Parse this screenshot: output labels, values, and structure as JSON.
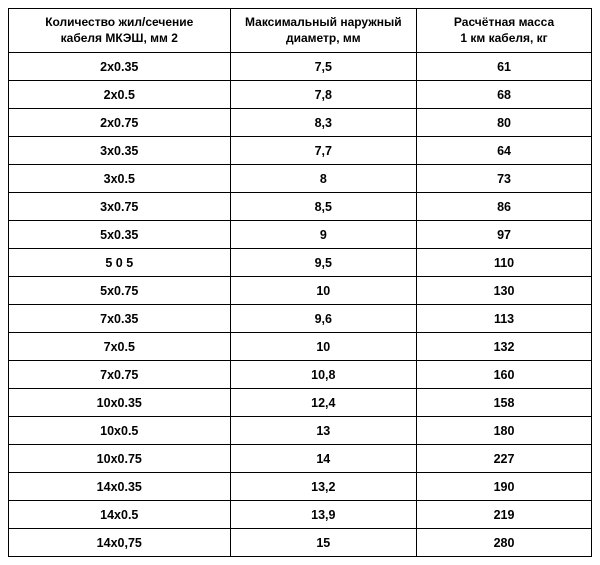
{
  "table": {
    "columns": [
      "Количество жил/сечение\nкабеля МКЭШ, мм 2",
      "Максимальный наружный\nдиаметр, мм",
      "Расчётная масса\n1 км кабеля, кг"
    ],
    "rows": [
      [
        "2х0.35",
        "7,5",
        "61"
      ],
      [
        "2х0.5",
        "7,8",
        "68"
      ],
      [
        "2х0.75",
        "8,3",
        "80"
      ],
      [
        "3х0.35",
        "7,7",
        "64"
      ],
      [
        "3х0.5",
        "8",
        "73"
      ],
      [
        "3х0.75",
        "8,5",
        "86"
      ],
      [
        "5х0.35",
        "9",
        "97"
      ],
      [
        "5 0 5",
        "9,5",
        "110"
      ],
      [
        "5х0.75",
        "10",
        "130"
      ],
      [
        "7х0.35",
        "9,6",
        "113"
      ],
      [
        "7х0.5",
        "10",
        "132"
      ],
      [
        "7х0.75",
        "10,8",
        "160"
      ],
      [
        "10х0.35",
        "12,4",
        "158"
      ],
      [
        "10х0.5",
        "13",
        "180"
      ],
      [
        "10х0.75",
        "14",
        "227"
      ],
      [
        "14х0.35",
        "13,2",
        "190"
      ],
      [
        "14х0.5",
        "13,9",
        "219"
      ],
      [
        "14х0,75",
        "15",
        "280"
      ]
    ],
    "column_widths": [
      "38%",
      "32%",
      "30%"
    ],
    "border_color": "#000000",
    "background_color": "#ffffff",
    "header_fontsize": 12,
    "cell_fontsize": 12.5,
    "font_weight": "bold"
  }
}
